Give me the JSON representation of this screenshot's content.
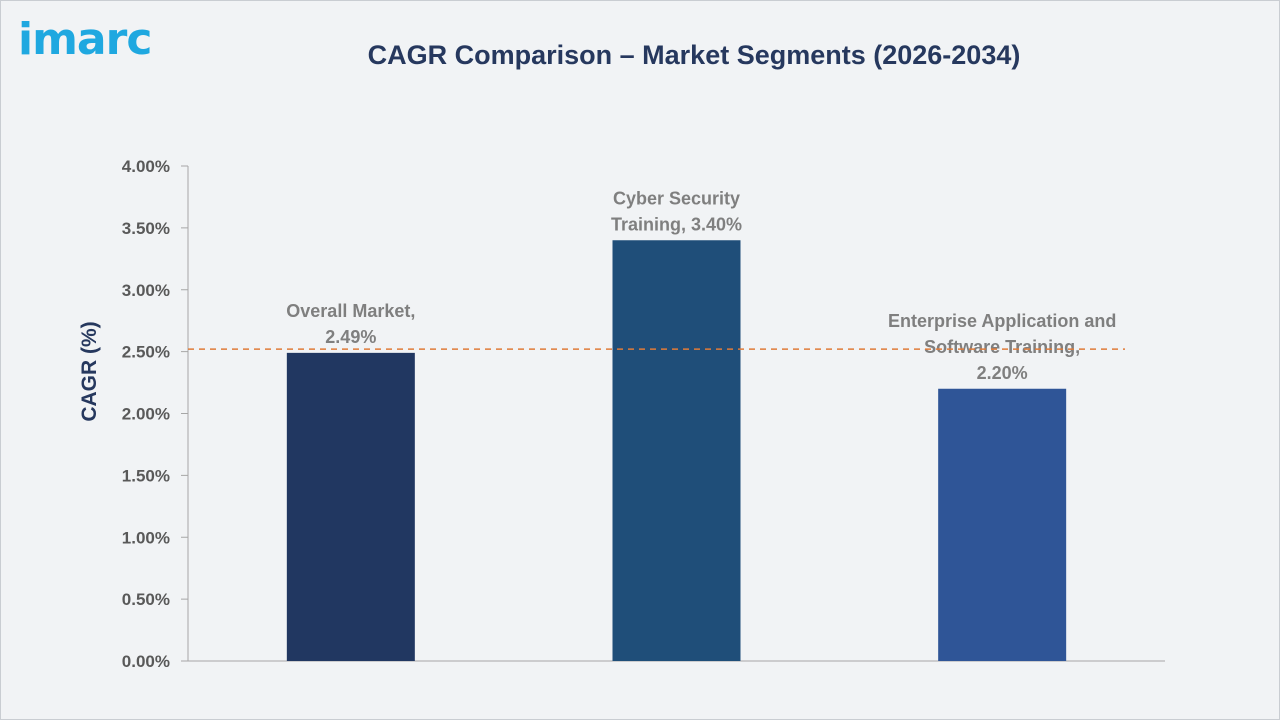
{
  "brand": {
    "logo_text": "imarc"
  },
  "chart_data": {
    "type": "bar",
    "title": "CAGR Comparison – Market Segments (2026-2034)",
    "ylabel": "CAGR (%)",
    "xlabel": "",
    "ylim": [
      0,
      4
    ],
    "yticks": [
      "0.00%",
      "0.50%",
      "1.00%",
      "1.50%",
      "2.00%",
      "2.50%",
      "3.00%",
      "3.50%",
      "4.00%"
    ],
    "categories": [
      "Overall Market",
      "Cyber Security Training",
      "Enterprise Application and Software Training"
    ],
    "values": [
      2.49,
      3.4,
      2.2
    ],
    "data_labels": [
      [
        "Overall Market,",
        "2.49%"
      ],
      [
        "Cyber Security",
        "Training, 3.40%"
      ],
      [
        "Enterprise Application and",
        "Software Training,",
        "2.20%"
      ]
    ],
    "bar_colors": [
      "#213761",
      "#1f4e79",
      "#2f5597"
    ],
    "reference_line": {
      "value": 2.52,
      "color": "#e07b39",
      "style": "dashed"
    },
    "grid": false,
    "legend": "none"
  }
}
